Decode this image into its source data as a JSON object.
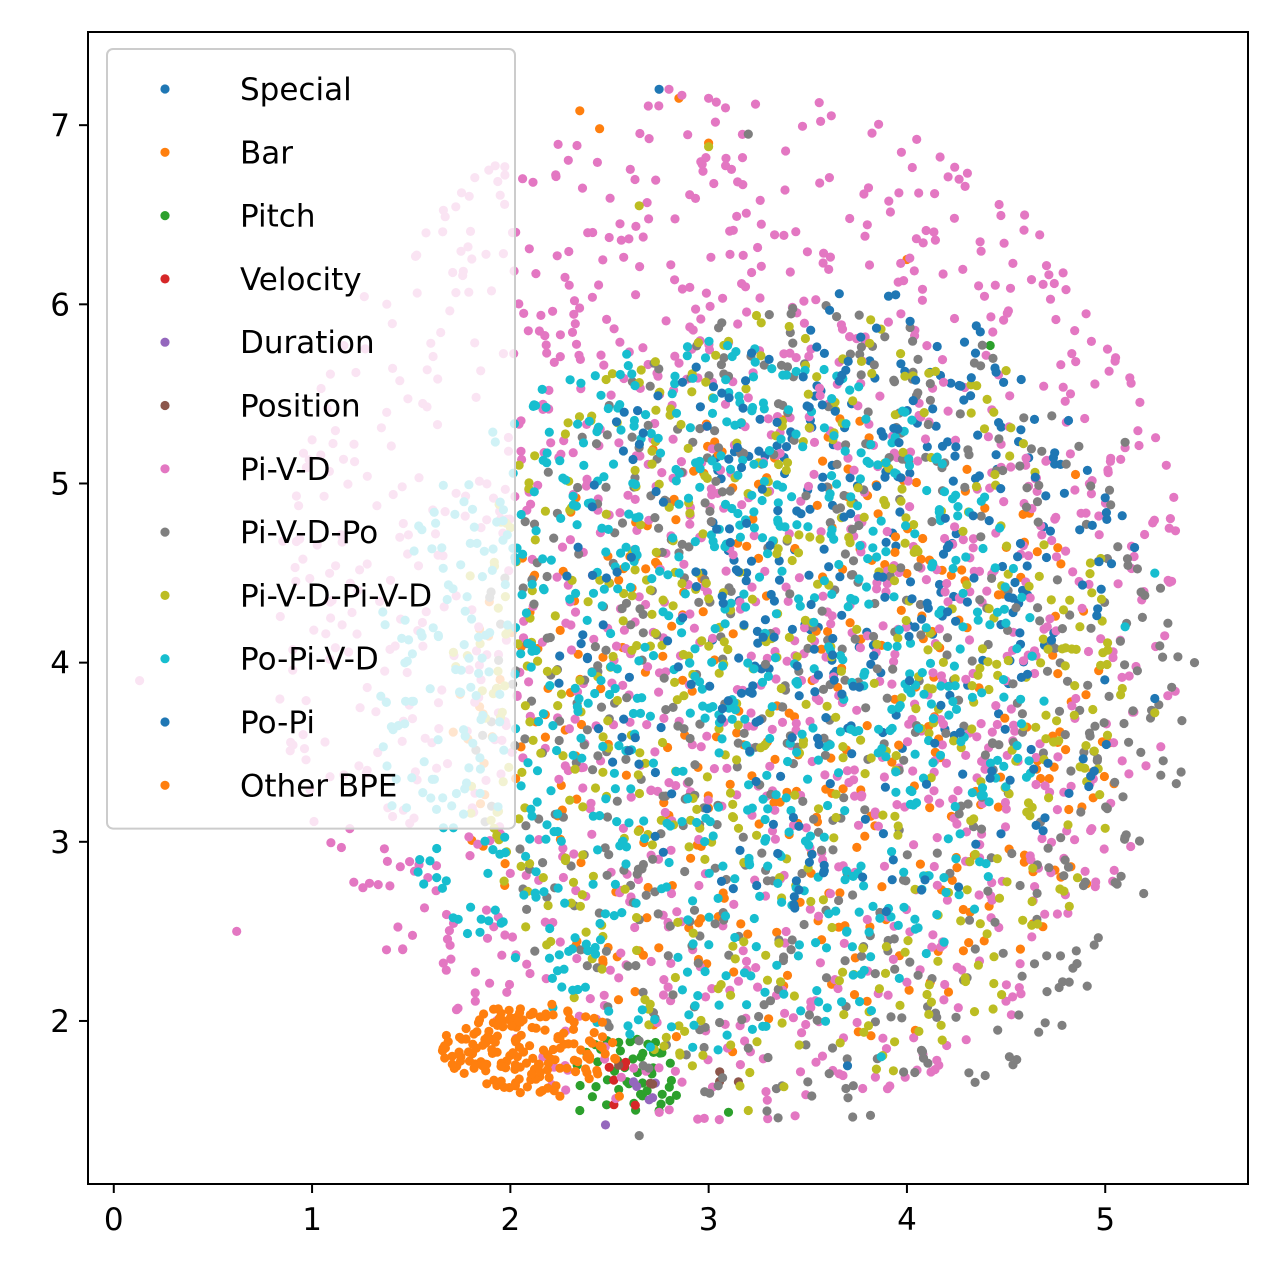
{
  "chart_data": {
    "type": "scatter",
    "title": "",
    "xlabel": "",
    "ylabel": "",
    "xlim": [
      -0.13,
      5.72
    ],
    "ylim": [
      1.09,
      7.52
    ],
    "xticks": [
      0,
      1,
      2,
      3,
      4,
      5
    ],
    "yticks": [
      2,
      3,
      4,
      5,
      6,
      7
    ],
    "grid": false,
    "legend_position": "upper-left",
    "series": [
      {
        "name": "Special",
        "color": "#1f77b4",
        "cloud": {
          "cx": 3.9,
          "cy": 4.6,
          "rx": 1.0,
          "ry": 1.1,
          "n": 140
        },
        "points": [
          [
            2.75,
            7.2
          ]
        ]
      },
      {
        "name": "Bar",
        "color": "#ff7f0e",
        "cloud": {
          "cx": 3.4,
          "cy": 3.6,
          "rx": 1.7,
          "ry": 1.8,
          "n": 330
        },
        "points": [
          [
            2.35,
            7.08
          ],
          [
            2.45,
            6.98
          ],
          [
            2.85,
            7.15
          ],
          [
            3.0,
            6.9
          ],
          [
            4.85,
            5.05
          ],
          [
            4.0,
            6.25
          ]
        ]
      },
      {
        "name": "Pitch",
        "color": "#2ca02c",
        "cloud": {
          "cx": 2.6,
          "cy": 1.7,
          "rx": 0.28,
          "ry": 0.22,
          "n": 45
        },
        "points": [
          [
            2.35,
            1.5
          ],
          [
            2.75,
            1.5
          ],
          [
            3.1,
            1.49
          ],
          [
            4.42,
            5.77
          ]
        ]
      },
      {
        "name": "Velocity",
        "color": "#d62728",
        "cloud": {
          "cx": 2.6,
          "cy": 1.65,
          "rx": 0.15,
          "ry": 0.15,
          "n": 5
        },
        "points": [
          [
            2.63,
            1.53
          ],
          [
            2.38,
            2.4
          ]
        ]
      },
      {
        "name": "Duration",
        "color": "#9467bd",
        "cloud": {
          "cx": 2.65,
          "cy": 1.6,
          "rx": 0.1,
          "ry": 0.1,
          "n": 4
        },
        "points": [
          [
            2.48,
            1.42
          ],
          [
            2.7,
            1.56
          ]
        ]
      },
      {
        "name": "Position",
        "color": "#8c564b",
        "cloud": {
          "cx": 2.8,
          "cy": 1.7,
          "rx": 0.3,
          "ry": 0.12,
          "n": 5
        },
        "points": [
          [
            3.15,
            1.66
          ]
        ]
      },
      {
        "name": "Pi-V-D",
        "color": "#e377c2",
        "cloud": {
          "cx": 3.1,
          "cy": 4.3,
          "rx": 2.3,
          "ry": 2.9,
          "n": 1300
        },
        "points": [
          [
            0.13,
            3.9
          ],
          [
            0.62,
            2.5
          ],
          [
            5.3,
            4.15
          ],
          [
            5.1,
            5.2
          ],
          [
            4.95,
            2.75
          ],
          [
            2.8,
            7.2
          ],
          [
            3.0,
            7.15
          ]
        ]
      },
      {
        "name": "Pi-V-D-Po",
        "color": "#7f7f7f",
        "cloud": {
          "cx": 3.6,
          "cy": 3.7,
          "rx": 1.8,
          "ry": 2.3,
          "n": 620
        },
        "points": [
          [
            5.45,
            4.0
          ],
          [
            2.65,
            1.36
          ],
          [
            3.5,
            1.66
          ],
          [
            3.2,
            6.95
          ],
          [
            5.1,
            5.23
          ],
          [
            4.15,
            2.02
          ]
        ]
      },
      {
        "name": "Pi-V-D-Pi-V-D",
        "color": "#bcbd22",
        "cloud": {
          "cx": 3.4,
          "cy": 3.8,
          "rx": 1.7,
          "ry": 2.2,
          "n": 560
        },
        "points": [
          [
            5.25,
            3.72
          ],
          [
            3.2,
            1.5
          ],
          [
            3.0,
            6.88
          ],
          [
            2.65,
            6.55
          ],
          [
            4.5,
            5.63
          ]
        ]
      },
      {
        "name": "Po-Pi-V-D",
        "color": "#17becf",
        "cloud": {
          "cx": 3.0,
          "cy": 3.8,
          "rx": 1.7,
          "ry": 2.0,
          "n": 820
        },
        "points": [
          [
            5.25,
            4.5
          ],
          [
            3.87,
            1.8
          ],
          [
            5.1,
            4.2
          ]
        ]
      },
      {
        "name": "Po-Pi",
        "color": "#1f77b4",
        "cloud": {
          "cx": 3.7,
          "cy": 4.3,
          "rx": 1.5,
          "ry": 1.8,
          "n": 260
        },
        "points": [
          [
            5.25,
            3.8
          ],
          [
            5.0,
            4.92
          ],
          [
            3.7,
            1.75
          ]
        ]
      },
      {
        "name": "Other BPE",
        "color": "#ff7f0e",
        "cloud": {
          "cx": 2.1,
          "cy": 1.85,
          "rx": 0.45,
          "ry": 0.25,
          "n": 180
        },
        "points": [
          [
            2.25,
            1.58
          ],
          [
            2.05,
            1.6
          ],
          [
            2.55,
            1.58
          ]
        ]
      }
    ]
  }
}
